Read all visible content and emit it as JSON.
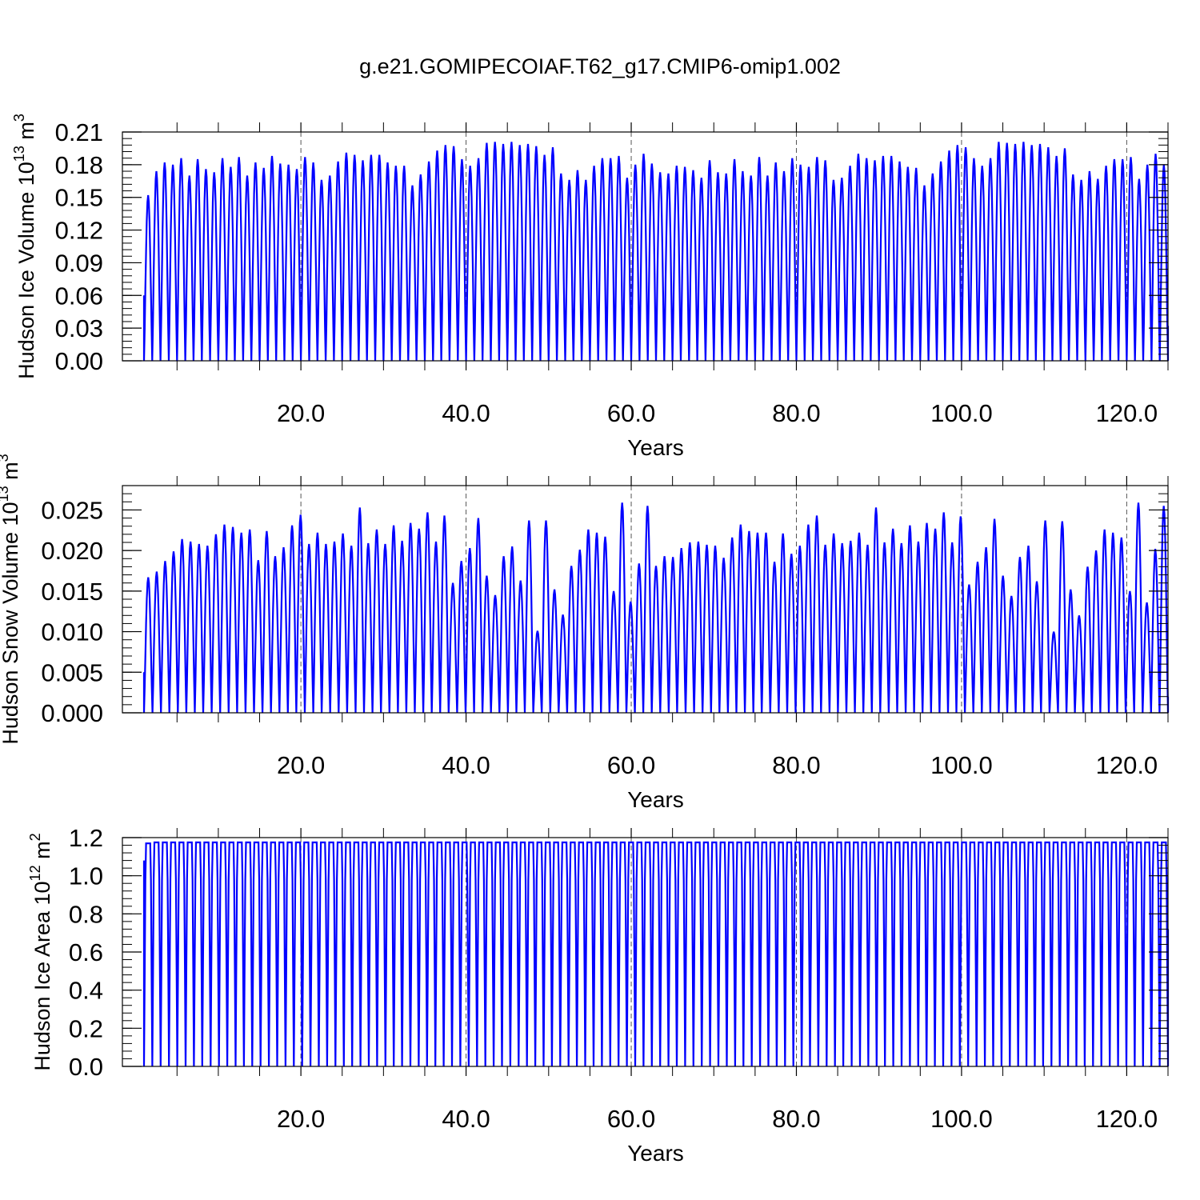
{
  "figure": {
    "title": "g.e21.GOMIPECOIAF.T62_g17.CMIP6-omip1.002"
  },
  "chart_data": [
    {
      "type": "line",
      "title": "g.e21.GOMIPECOIAF.T62_g17.CMIP6-omip1.002",
      "xlabel": "Years",
      "ylabel": {
        "main": "Hudson Ice Volume 10",
        "sup": "13",
        "tail": " m",
        "sup2": "3"
      },
      "xlim": [
        1,
        125
      ],
      "ylim": [
        0,
        0.21
      ],
      "xticks": [
        20,
        40,
        60,
        80,
        100,
        120
      ],
      "xtick_labels": [
        "20.0",
        "40.0",
        "60.0",
        "80.0",
        "100.0",
        "120.0"
      ],
      "yticks": [
        0,
        0.03,
        0.06,
        0.09,
        0.12,
        0.15,
        0.18,
        0.21
      ],
      "ytick_labels": [
        "0.00",
        "0.03",
        "0.06",
        "0.09",
        "0.12",
        "0.15",
        "0.18",
        "0.21"
      ],
      "grid": "vertical dashed at x ticks",
      "series": [
        {
          "color": "#0000ff",
          "start_value": 0.06,
          "end_value": 0.032,
          "annual_minimum": 0.0,
          "annual_peaks": [
            0.152,
            0.174,
            0.182,
            0.18,
            0.186,
            0.17,
            0.185,
            0.176,
            0.173,
            0.186,
            0.178,
            0.187,
            0.17,
            0.182,
            0.177,
            0.188,
            0.181,
            0.18,
            0.176,
            0.187,
            0.182,
            0.166,
            0.17,
            0.183,
            0.191,
            0.189,
            0.184,
            0.189,
            0.189,
            0.182,
            0.179,
            0.179,
            0.161,
            0.171,
            0.183,
            0.193,
            0.198,
            0.197,
            0.185,
            0.179,
            0.186,
            0.2,
            0.201,
            0.199,
            0.201,
            0.198,
            0.199,
            0.197,
            0.189,
            0.196,
            0.172,
            0.166,
            0.175,
            0.166,
            0.179,
            0.186,
            0.186,
            0.188,
            0.168,
            0.18,
            0.19,
            0.181,
            0.173,
            0.172,
            0.179,
            0.178,
            0.175,
            0.168,
            0.184,
            0.173,
            0.172,
            0.185,
            0.174,
            0.17,
            0.187,
            0.17,
            0.182,
            0.174,
            0.186,
            0.18,
            0.178,
            0.187,
            0.184,
            0.166,
            0.168,
            0.179,
            0.19,
            0.186,
            0.184,
            0.188,
            0.188,
            0.183,
            0.178,
            0.177,
            0.161,
            0.172,
            0.183,
            0.193,
            0.198,
            0.196,
            0.186,
            0.179,
            0.186,
            0.201,
            0.2,
            0.199,
            0.201,
            0.198,
            0.199,
            0.196,
            0.188,
            0.195,
            0.171,
            0.166,
            0.174,
            0.167,
            0.179,
            0.185,
            0.185,
            0.187,
            0.167,
            0.18,
            0.19,
            0.18
          ]
        }
      ]
    },
    {
      "type": "line",
      "xlabel": "Years",
      "ylabel": {
        "main": "Hudson Snow Volume 10",
        "sup": "13",
        "tail": " m",
        "sup2": "3"
      },
      "xlim": [
        1,
        125
      ],
      "ylim": [
        0,
        0.028
      ],
      "xticks": [
        20,
        40,
        60,
        80,
        100,
        120
      ],
      "xtick_labels": [
        "20.0",
        "40.0",
        "60.0",
        "80.0",
        "100.0",
        "120.0"
      ],
      "yticks": [
        0,
        0.005,
        0.01,
        0.015,
        0.02,
        0.025
      ],
      "ytick_labels": [
        "0.000",
        "0.005",
        "0.010",
        "0.015",
        "0.020",
        "0.025"
      ],
      "grid": "vertical dashed at x ticks",
      "series": [
        {
          "color": "#0000ff",
          "start_value": 0.005,
          "end_value": 0.002,
          "annual_minimum": 0.0,
          "annual_peaks": [
            0.0167,
            0.0174,
            0.0187,
            0.0199,
            0.0214,
            0.0211,
            0.0208,
            0.0206,
            0.022,
            0.0232,
            0.0229,
            0.0222,
            0.0226,
            0.0188,
            0.0224,
            0.0193,
            0.0204,
            0.0231,
            0.0244,
            0.0208,
            0.0222,
            0.0208,
            0.0211,
            0.0221,
            0.0206,
            0.0253,
            0.0209,
            0.0226,
            0.0208,
            0.0231,
            0.0212,
            0.0234,
            0.0227,
            0.0247,
            0.0211,
            0.0243,
            0.016,
            0.0187,
            0.0203,
            0.024,
            0.0169,
            0.0145,
            0.0193,
            0.0205,
            0.0163,
            0.0237,
            0.0101,
            0.0237,
            0.0152,
            0.0121,
            0.0181,
            0.0201,
            0.0226,
            0.0222,
            0.0217,
            0.015,
            0.0259,
            0.0137,
            0.0184,
            0.0255,
            0.0181,
            0.0193,
            0.0192,
            0.0203,
            0.021,
            0.0211,
            0.0207,
            0.0206,
            0.0191,
            0.0216,
            0.0232,
            0.0224,
            0.0222,
            0.0222,
            0.0186,
            0.0221,
            0.0196,
            0.0206,
            0.0232,
            0.0243,
            0.0207,
            0.0221,
            0.0209,
            0.0212,
            0.0222,
            0.0207,
            0.0253,
            0.021,
            0.0227,
            0.0209,
            0.0231,
            0.0211,
            0.0234,
            0.0227,
            0.0247,
            0.021,
            0.0242,
            0.0158,
            0.0186,
            0.0204,
            0.0239,
            0.0169,
            0.0144,
            0.0192,
            0.0206,
            0.0162,
            0.0237,
            0.01,
            0.0236,
            0.0152,
            0.012,
            0.018,
            0.02,
            0.0226,
            0.0222,
            0.0216,
            0.015,
            0.0259,
            0.0136,
            0.0202,
            0.0255
          ]
        }
      ]
    },
    {
      "type": "line",
      "xlabel": "Years",
      "ylabel": {
        "main": "Hudson Ice Area 10",
        "sup": "12",
        "tail": " m",
        "sup2": "2"
      },
      "xlim": [
        1,
        125
      ],
      "ylim": [
        0,
        1.2
      ],
      "xticks": [
        20,
        40,
        60,
        80,
        100,
        120
      ],
      "xtick_labels": [
        "20.0",
        "40.0",
        "60.0",
        "80.0",
        "100.0",
        "120.0"
      ],
      "yticks": [
        0,
        0.2,
        0.4,
        0.6,
        0.8,
        1.0,
        1.2
      ],
      "ytick_labels": [
        "0.0",
        "0.2",
        "0.4",
        "0.6",
        "0.8",
        "1.0",
        "1.2"
      ],
      "grid": "vertical dashed at x ticks",
      "series": [
        {
          "color": "#0000ff",
          "start_value": 1.08,
          "end_value": 0.72,
          "annual_minimum": 0.0,
          "annual_peaks": [
            1.17,
            1.175,
            1.175,
            1.175,
            1.175,
            1.175,
            1.175,
            1.175,
            1.175,
            1.175,
            1.175,
            1.175,
            1.175,
            1.175,
            1.175,
            1.175,
            1.175,
            1.175,
            1.175,
            1.175,
            1.175,
            1.175,
            1.175,
            1.175,
            1.175,
            1.175,
            1.175,
            1.175,
            1.175,
            1.175,
            1.175,
            1.175,
            1.175,
            1.175,
            1.175,
            1.175,
            1.175,
            1.175,
            1.175,
            1.175,
            1.175,
            1.175,
            1.175,
            1.175,
            1.175,
            1.175,
            1.175,
            1.175,
            1.175,
            1.175,
            1.175,
            1.175,
            1.175,
            1.175,
            1.175,
            1.175,
            1.175,
            1.175,
            1.175,
            1.175,
            1.175,
            1.175,
            1.175,
            1.175,
            1.175,
            1.175,
            1.175,
            1.175,
            1.175,
            1.175,
            1.175,
            1.175,
            1.175,
            1.175,
            1.175,
            1.175,
            1.175,
            1.175,
            1.175,
            1.175,
            1.175,
            1.175,
            1.175,
            1.175,
            1.175,
            1.175,
            1.175,
            1.175,
            1.175,
            1.175,
            1.175,
            1.175,
            1.175,
            1.175,
            1.175,
            1.175,
            1.175,
            1.175,
            1.175,
            1.175,
            1.175,
            1.175,
            1.175,
            1.175,
            1.175,
            1.175,
            1.175,
            1.175,
            1.175,
            1.175,
            1.175,
            1.175,
            1.175,
            1.175,
            1.175,
            1.175,
            1.175,
            1.175,
            1.175,
            1.175,
            1.175,
            1.175,
            1.175
          ]
        }
      ]
    }
  ]
}
